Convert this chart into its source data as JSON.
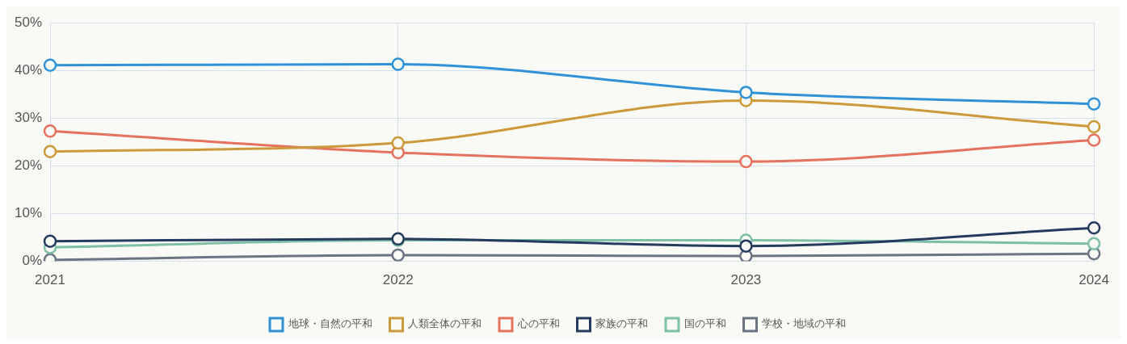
{
  "chart_data": {
    "type": "line",
    "categories": [
      "2021",
      "2022",
      "2023",
      "2024"
    ],
    "ylim": [
      0,
      50
    ],
    "yticks": [
      {
        "value": 0,
        "label": "0%"
      },
      {
        "value": 10,
        "label": "10%"
      },
      {
        "value": 20,
        "label": "20%"
      },
      {
        "value": 30,
        "label": "30%"
      },
      {
        "value": 40,
        "label": "40%"
      },
      {
        "value": 50,
        "label": "50%"
      }
    ],
    "grid": true,
    "legend": "bottom",
    "marker": "circle",
    "line_style": "solid",
    "series": [
      {
        "name": "地球・自然の平和",
        "color": "#2f92d8",
        "values": [
          41.1,
          41.3,
          35.4,
          33.0
        ]
      },
      {
        "name": "人類全体の平和",
        "color": "#cc9a3a",
        "values": [
          23.0,
          24.8,
          33.7,
          28.2
        ]
      },
      {
        "name": "心の平和",
        "color": "#e4725e",
        "values": [
          27.3,
          22.8,
          20.9,
          25.4
        ]
      },
      {
        "name": "家族の平和",
        "color": "#243a5e",
        "values": [
          4.2,
          4.7,
          3.2,
          7.0
        ]
      },
      {
        "name": "国の平和",
        "color": "#7fbfa6",
        "values": [
          2.9,
          4.4,
          4.4,
          3.7
        ]
      },
      {
        "name": "学校・地域の平和",
        "color": "#6b7482",
        "values": [
          0.3,
          1.3,
          1.1,
          1.6
        ]
      }
    ]
  }
}
